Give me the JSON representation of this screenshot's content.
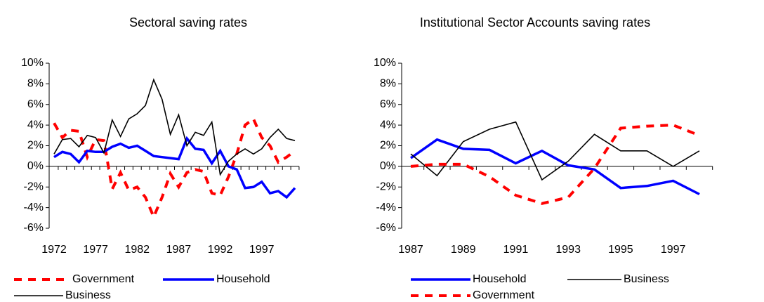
{
  "chart_data": [
    {
      "type": "line",
      "title": "Sectoral saving rates",
      "x": [
        1972,
        1973,
        1974,
        1975,
        1976,
        1977,
        1978,
        1979,
        1980,
        1981,
        1982,
        1983,
        1984,
        1985,
        1986,
        1987,
        1988,
        1989,
        1990,
        1991,
        1992,
        1993,
        1994,
        1995,
        1996,
        1997,
        1998,
        1999,
        2000,
        2001
      ],
      "xlim": [
        1972,
        2001
      ],
      "xticks": [
        1972,
        1977,
        1982,
        1987,
        1992,
        1997
      ],
      "ylim": [
        -6,
        10
      ],
      "yticks": [
        {
          "value": 10,
          "label": "10%"
        },
        {
          "value": 8,
          "label": "8%"
        },
        {
          "value": 6,
          "label": "6%"
        },
        {
          "value": 4,
          "label": "4%"
        },
        {
          "value": 2,
          "label": "2%"
        },
        {
          "value": 0,
          "label": "0%"
        },
        {
          "value": -2,
          "label": "-2%"
        },
        {
          "value": -4,
          "label": "-4%"
        },
        {
          "value": -6,
          "label": "-6%"
        }
      ],
      "grid": false,
      "series": [
        {
          "name": "Government",
          "color": "#ff0000",
          "line_style": "dashed",
          "values": [
            4.2,
            2.8,
            3.5,
            3.4,
            0.9,
            2.6,
            2.5,
            -2.2,
            -0.6,
            -2.3,
            -2.0,
            -3.0,
            -4.9,
            -3.0,
            -0.7,
            -2.0,
            -0.6,
            -0.3,
            -0.5,
            -2.6,
            -2.8,
            -1.0,
            1.2,
            4.0,
            4.6,
            2.8,
            2.0,
            0.4,
            0.9,
            1.5
          ]
        },
        {
          "name": "Household",
          "color": "#0000ff",
          "line_style": "thick",
          "values": [
            0.9,
            1.4,
            1.2,
            0.4,
            1.5,
            1.4,
            1.4,
            1.9,
            2.2,
            1.8,
            2.0,
            1.5,
            1.0,
            0.9,
            0.8,
            0.7,
            2.7,
            1.7,
            1.6,
            0.3,
            1.5,
            0.0,
            -0.3,
            -2.1,
            -2.0,
            -1.5,
            -2.6,
            -2.4,
            -3.0,
            -2.1
          ]
        },
        {
          "name": "Business",
          "color": "#000000",
          "line_style": "thin",
          "values": [
            1.2,
            2.6,
            2.7,
            1.9,
            3.0,
            2.8,
            1.3,
            4.5,
            2.9,
            4.6,
            5.1,
            5.9,
            8.4,
            6.5,
            3.1,
            5.0,
            2.0,
            3.3,
            3.0,
            4.3,
            -0.8,
            0.5,
            1.2,
            1.7,
            1.2,
            1.7,
            2.8,
            3.6,
            2.7,
            2.5
          ]
        }
      ]
    },
    {
      "type": "line",
      "title": "Institutional Sector Accounts saving rates",
      "x": [
        1987,
        1988,
        1989,
        1990,
        1991,
        1992,
        1993,
        1994,
        1995,
        1996,
        1997,
        1998
      ],
      "xlim": [
        1987,
        1998
      ],
      "xticks": [
        1987,
        1989,
        1991,
        1993,
        1995,
        1997
      ],
      "ylim": [
        -6,
        10
      ],
      "yticks": [
        {
          "value": 10,
          "label": "10%"
        },
        {
          "value": 8,
          "label": "8%"
        },
        {
          "value": 6,
          "label": "6%"
        },
        {
          "value": 4,
          "label": "4%"
        },
        {
          "value": 2,
          "label": "2%"
        },
        {
          "value": 0,
          "label": "0%"
        },
        {
          "value": -2,
          "label": "-2%"
        },
        {
          "value": -4,
          "label": "-4%"
        },
        {
          "value": -6,
          "label": "-6%"
        }
      ],
      "grid": false,
      "series": [
        {
          "name": "Household",
          "color": "#0000ff",
          "line_style": "thick",
          "values": [
            0.8,
            2.6,
            1.7,
            1.6,
            0.3,
            1.5,
            0.1,
            -0.3,
            -2.1,
            -1.9,
            -1.4,
            -2.7
          ]
        },
        {
          "name": "Business",
          "color": "#000000",
          "line_style": "thin",
          "values": [
            1.2,
            -0.9,
            2.4,
            3.6,
            4.3,
            -1.3,
            0.5,
            3.1,
            1.5,
            1.5,
            0.0,
            1.5
          ]
        },
        {
          "name": "Government",
          "color": "#ff0000",
          "line_style": "dashed",
          "values": [
            0.0,
            0.2,
            0.2,
            -1.0,
            -2.8,
            -3.6,
            -3.0,
            -0.2,
            3.7,
            3.9,
            4.0,
            3.0
          ]
        }
      ]
    }
  ]
}
